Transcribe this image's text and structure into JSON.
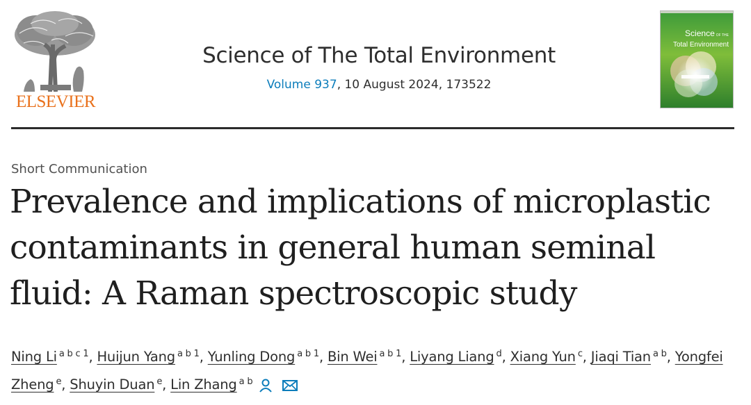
{
  "header": {
    "publisher": "ELSEVIER",
    "journal_title": "Science of The Total Environment",
    "volume_link": "Volume 937",
    "issue_details": ", 10 August 2024, 173522",
    "cover_title_line1": "Science",
    "cover_title_line2": "Total Environment",
    "cover_title_of_the": "OF THE"
  },
  "article": {
    "type": "Short Communication",
    "title": "Prevalence and implications of microplastic contaminants in general human seminal fluid: A Raman spectroscopic study"
  },
  "authors": [
    {
      "name": "Ning Li",
      "aff": "a b c 1"
    },
    {
      "name": "Huijun Yang",
      "aff": "a b 1"
    },
    {
      "name": "Yunling Dong",
      "aff": "a b 1"
    },
    {
      "name": "Bin Wei",
      "aff": "a b 1"
    },
    {
      "name": "Liyang Liang",
      "aff": "d"
    },
    {
      "name": "Xiang Yun",
      "aff": "c"
    },
    {
      "name": "Jiaqi Tian",
      "aff": "a b"
    },
    {
      "name": "Yongfei Zheng",
      "aff": "e"
    },
    {
      "name": "Shuyin Duan",
      "aff": "e"
    },
    {
      "name": "Lin Zhang",
      "aff": "a b"
    }
  ],
  "author_separator": ", ",
  "icons": {
    "corresponding_author": "person-icon",
    "email": "envelope-icon"
  },
  "colors": {
    "publisher_orange": "#e9711c",
    "link_blue": "#0c7dbb",
    "text": "#1f1f1f"
  }
}
